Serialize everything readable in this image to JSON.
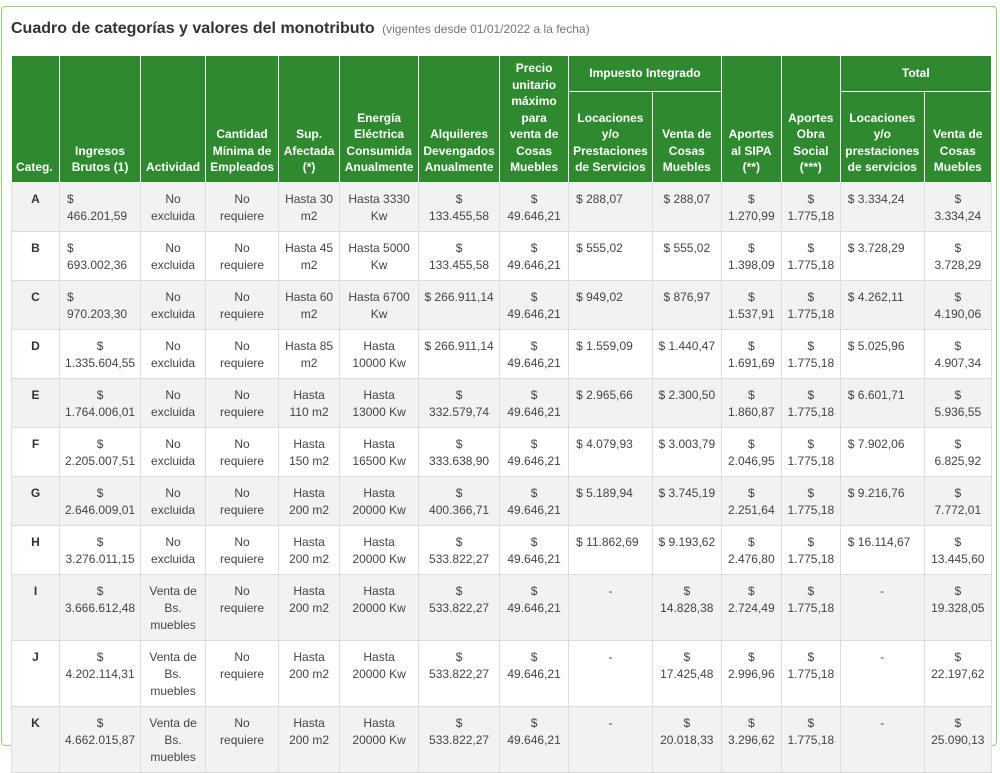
{
  "title": "Cuadro de categorías y valores del monotributo",
  "subtitle": "(vigentes desde 01/01/2022 a la fecha)",
  "groups": {
    "impuesto": "Impuesto Integrado",
    "total": "Total"
  },
  "headers": {
    "categ": "Categ.",
    "ingresos": "Ingresos Brutos (1)",
    "actividad": "Actividad",
    "empleados": "Cantidad Mínima de Empleados",
    "superficie": "Sup. Afectada (*)",
    "energia": "Energía Eléctrica Consumida Anualmente",
    "alquileres": "Alquileres Devengados Anualmente",
    "precio": "Precio unitario máximo para venta de Cosas Muebles",
    "imp_locaciones": "Locaciones y/o Prestaciones de Servicios",
    "imp_venta": "Venta de Cosas Muebles",
    "sipa": "Aportes al SIPA (**)",
    "obra_social": "Aportes Obra Social (***)",
    "tot_locaciones": "Locaciones y/o prestaciones de servicios",
    "tot_venta": "Venta de Cosas Muebles"
  },
  "rows": [
    {
      "cat": "A",
      "ingresos": "$ 466.201,59",
      "actividad": "No excluida",
      "empleados": "No requiere",
      "superficie": "Hasta 30 m2",
      "energia": "Hasta 3330 Kw",
      "alquileres": "$ 133.455,58",
      "precio": "$ 49.646,21",
      "imp_loc": "$ 288,07",
      "imp_venta": "$ 288,07",
      "sipa": "$ 1.270,99",
      "obra": "$ 1.775,18",
      "tot_loc": "$ 3.334,24",
      "tot_venta": "$ 3.334,24"
    },
    {
      "cat": "B",
      "ingresos": "$ 693.002,36",
      "actividad": "No excluida",
      "empleados": "No requiere",
      "superficie": "Hasta 45 m2",
      "energia": "Hasta 5000 Kw",
      "alquileres": "$ 133.455,58",
      "precio": "$ 49.646,21",
      "imp_loc": "$ 555,02",
      "imp_venta": "$ 555,02",
      "sipa": "$ 1.398,09",
      "obra": "$ 1.775,18",
      "tot_loc": "$ 3.728,29",
      "tot_venta": "$ 3.728,29"
    },
    {
      "cat": "C",
      "ingresos": "$ 970.203,30",
      "actividad": "No excluida",
      "empleados": "No requiere",
      "superficie": "Hasta 60 m2",
      "energia": "Hasta 6700 Kw",
      "alquileres": "$ 266.911,14",
      "precio": "$ 49.646,21",
      "imp_loc": "$ 949,02",
      "imp_venta": "$ 876,97",
      "sipa": "$ 1.537,91",
      "obra": "$ 1.775,18",
      "tot_loc": "$ 4.262,11",
      "tot_venta": "$ 4.190,06"
    },
    {
      "cat": "D",
      "ingresos": "$ 1.335.604,55",
      "actividad": "No excluida",
      "empleados": "No requiere",
      "superficie": "Hasta 85 m2",
      "energia": "Hasta 10000 Kw",
      "alquileres": "$ 266.911,14",
      "precio": "$ 49.646,21",
      "imp_loc": "$ 1.559,09",
      "imp_venta": "$ 1.440,47",
      "sipa": "$ 1.691,69",
      "obra": "$ 1.775,18",
      "tot_loc": "$ 5.025,96",
      "tot_venta": "$ 4.907,34"
    },
    {
      "cat": "E",
      "ingresos": "$ 1.764.006,01",
      "actividad": "No excluida",
      "empleados": "No requiere",
      "superficie": "Hasta 110 m2",
      "energia": "Hasta 13000 Kw",
      "alquileres": "$ 332.579,74",
      "precio": "$ 49.646,21",
      "imp_loc": "$ 2.965,66",
      "imp_venta": "$ 2.300,50",
      "sipa": "$ 1.860,87",
      "obra": "$ 1.775,18",
      "tot_loc": "$ 6.601,71",
      "tot_venta": "$ 5.936,55"
    },
    {
      "cat": "F",
      "ingresos": "$ 2.205.007,51",
      "actividad": "No excluida",
      "empleados": "No requiere",
      "superficie": "Hasta 150 m2",
      "energia": "Hasta 16500 Kw",
      "alquileres": "$ 333.638,90",
      "precio": "$ 49.646,21",
      "imp_loc": "$ 4.079,93",
      "imp_venta": "$ 3.003,79",
      "sipa": "$ 2.046,95",
      "obra": "$ 1.775,18",
      "tot_loc": "$ 7.902,06",
      "tot_venta": "$ 6.825,92"
    },
    {
      "cat": "G",
      "ingresos": "$ 2.646.009,01",
      "actividad": "No excluida",
      "empleados": "No requiere",
      "superficie": "Hasta 200 m2",
      "energia": "Hasta 20000 Kw",
      "alquileres": "$ 400.366,71",
      "precio": "$ 49.646,21",
      "imp_loc": "$ 5.189,94",
      "imp_venta": "$ 3.745,19",
      "sipa": "$ 2.251,64",
      "obra": "$ 1.775,18",
      "tot_loc": "$ 9.216,76",
      "tot_venta": "$ 7.772,01"
    },
    {
      "cat": "H",
      "ingresos": "$ 3.276.011,15",
      "actividad": "No excluida",
      "empleados": "No requiere",
      "superficie": "Hasta 200 m2",
      "energia": "Hasta 20000 Kw",
      "alquileres": "$ 533.822,27",
      "precio": "$ 49.646,21",
      "imp_loc": "$ 11.862,69",
      "imp_venta": "$ 9.193,62",
      "sipa": "$ 2.476,80",
      "obra": "$ 1.775,18",
      "tot_loc": "$ 16.114,67",
      "tot_venta": "$ 13.445,60"
    },
    {
      "cat": "I",
      "ingresos": "$ 3.666.612,48",
      "actividad": "Venta de Bs. muebles",
      "empleados": "No requiere",
      "superficie": "Hasta 200 m2",
      "energia": "Hasta 20000 Kw",
      "alquileres": "$ 533.822,27",
      "precio": "$ 49.646,21",
      "imp_loc": "-",
      "imp_venta": "$ 14.828,38",
      "sipa": "$ 2.724,49",
      "obra": "$ 1.775,18",
      "tot_loc": "-",
      "tot_venta": "$ 19.328,05"
    },
    {
      "cat": "J",
      "ingresos": "$ 4.202.114,31",
      "actividad": "Venta de Bs. muebles",
      "empleados": "No requiere",
      "superficie": "Hasta 200 m2",
      "energia": "Hasta 20000 Kw",
      "alquileres": "$ 533.822,27",
      "precio": "$ 49.646,21",
      "imp_loc": "-",
      "imp_venta": "$ 17.425,48",
      "sipa": "$ 2.996,96",
      "obra": "$ 1.775,18",
      "tot_loc": "-",
      "tot_venta": "$ 22.197,62"
    },
    {
      "cat": "K",
      "ingresos": "$ 4.662.015,87",
      "actividad": "Venta de Bs. muebles",
      "empleados": "No requiere",
      "superficie": "Hasta 200 m2",
      "energia": "Hasta 20000 Kw",
      "alquileres": "$ 533.822,27",
      "precio": "$ 49.646,21",
      "imp_loc": "-",
      "imp_venta": "$ 20.018,33",
      "sipa": "$ 3.296,62",
      "obra": "$ 1.775,18",
      "tot_loc": "-",
      "tot_venta": "$ 25.090,13"
    }
  ],
  "colors": {
    "header_green": "#2f8a2f",
    "panel_border": "#9acd7a",
    "row_stripe": "#f2f2f2"
  }
}
